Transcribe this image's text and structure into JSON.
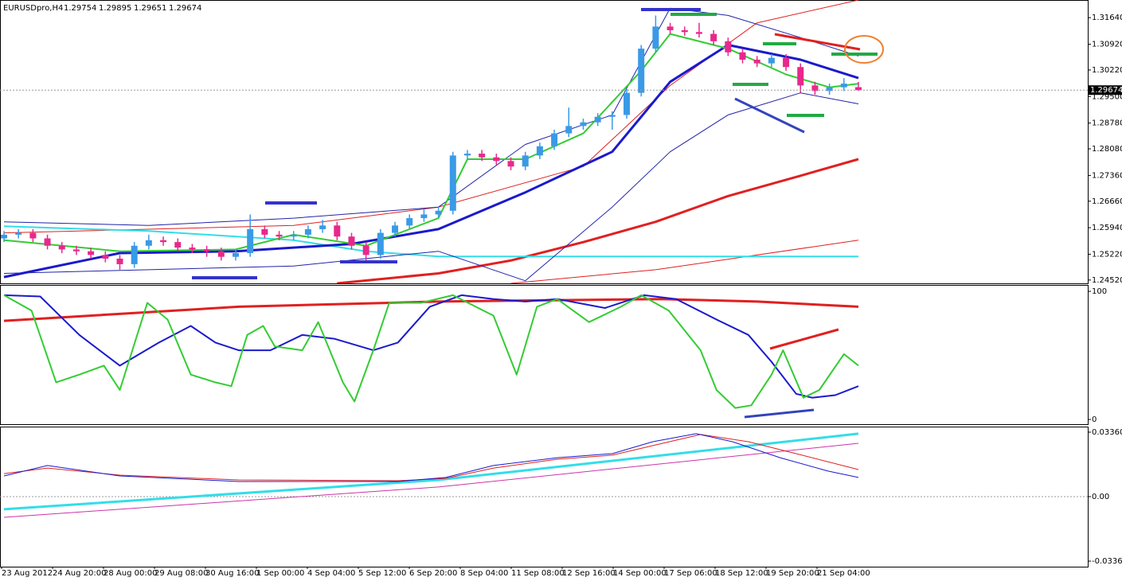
{
  "chart_data": [
    {
      "type": "candlestick",
      "title": "EURUSDpro,H4",
      "open": [
        1.2565,
        1.2575,
        1.258,
        1.2565,
        1.2545,
        1.2535,
        1.253,
        1.252,
        1.251,
        1.2495,
        1.2545,
        1.256,
        1.2555,
        1.254,
        1.2535,
        1.253,
        1.2515,
        1.2525,
        1.259,
        1.2575,
        1.257,
        1.2575,
        1.259,
        1.26,
        1.257,
        1.2545,
        1.252,
        1.258,
        1.26,
        1.262,
        1.263,
        1.264,
        1.279,
        1.2795,
        1.2785,
        1.2775,
        1.276,
        1.279,
        1.2815,
        1.285,
        1.287,
        1.288,
        1.2895,
        1.29,
        1.296,
        1.308,
        1.314,
        1.313,
        1.3125,
        1.312,
        1.31,
        1.307,
        1.305,
        1.304,
        1.3055,
        1.303,
        1.298,
        1.2965,
        1.2975,
        1.29754
      ],
      "high": [
        1.2585,
        1.259,
        1.259,
        1.2575,
        1.2555,
        1.2545,
        1.254,
        1.253,
        1.252,
        1.2555,
        1.2575,
        1.257,
        1.2565,
        1.255,
        1.2545,
        1.254,
        1.2535,
        1.263,
        1.26,
        1.2585,
        1.2585,
        1.26,
        1.2615,
        1.261,
        1.258,
        1.2555,
        1.259,
        1.261,
        1.263,
        1.2645,
        1.265,
        1.28,
        1.2805,
        1.2805,
        1.2795,
        1.2785,
        1.28,
        1.2825,
        1.286,
        1.292,
        1.289,
        1.2905,
        1.291,
        1.297,
        1.309,
        1.317,
        1.315,
        1.314,
        1.315,
        1.313,
        1.311,
        1.308,
        1.306,
        1.3065,
        1.3065,
        1.304,
        1.299,
        1.2985,
        1.3,
        1.29895
      ],
      "low": [
        1.2555,
        1.2565,
        1.2555,
        1.2535,
        1.2525,
        1.252,
        1.251,
        1.25,
        1.248,
        1.2485,
        1.2535,
        1.2545,
        1.253,
        1.2525,
        1.2515,
        1.2505,
        1.2505,
        1.2515,
        1.2565,
        1.256,
        1.256,
        1.2565,
        1.258,
        1.256,
        1.2535,
        1.2505,
        1.251,
        1.257,
        1.259,
        1.261,
        1.262,
        1.263,
        1.278,
        1.2775,
        1.2765,
        1.275,
        1.275,
        1.278,
        1.2805,
        1.284,
        1.286,
        1.287,
        1.286,
        1.289,
        1.295,
        1.307,
        1.312,
        1.3115,
        1.311,
        1.309,
        1.306,
        1.304,
        1.303,
        1.303,
        1.302,
        1.296,
        1.2955,
        1.2955,
        1.2965,
        1.29651
      ],
      "close": [
        1.2575,
        1.258,
        1.2565,
        1.2545,
        1.2535,
        1.253,
        1.252,
        1.251,
        1.2495,
        1.2545,
        1.256,
        1.2555,
        1.254,
        1.2535,
        1.253,
        1.2515,
        1.2525,
        1.259,
        1.2575,
        1.257,
        1.2575,
        1.259,
        1.26,
        1.257,
        1.2545,
        1.252,
        1.258,
        1.26,
        1.262,
        1.263,
        1.264,
        1.279,
        1.2795,
        1.2785,
        1.2775,
        1.276,
        1.279,
        1.2815,
        1.285,
        1.287,
        1.288,
        1.2895,
        1.29,
        1.296,
        1.308,
        1.314,
        1.313,
        1.3125,
        1.312,
        1.31,
        1.307,
        1.305,
        1.304,
        1.3055,
        1.303,
        1.298,
        1.2965,
        1.2975,
        1.2985,
        1.29674
      ],
      "up_color": "#3a9ae6",
      "down_color": "#e8288c",
      "ylim": [
        1.2443,
        1.3212
      ],
      "yticks": [
        {
          "value": 1.3164,
          "label": "1.31640"
        },
        {
          "value": 1.3092,
          "label": "1.30920"
        },
        {
          "value": 1.3022,
          "label": "1.30220"
        },
        {
          "value": 1.295,
          "label": "1.29500"
        },
        {
          "value": 1.2878,
          "label": "1.28780"
        },
        {
          "value": 1.2808,
          "label": "1.28080"
        },
        {
          "value": 1.2736,
          "label": "1.27360"
        },
        {
          "value": 1.2666,
          "label": "1.26660"
        },
        {
          "value": 1.2594,
          "label": "1.25940"
        },
        {
          "value": 1.2522,
          "label": "1.25220"
        },
        {
          "value": 1.2452,
          "label": "1.24520"
        }
      ],
      "series": [
        {
          "color": "#e02020",
          "width": 3,
          "x": [
            23,
            30,
            35,
            40,
            45,
            50,
            55,
            59
          ],
          "values": [
            1.2443,
            1.247,
            1.2505,
            1.2555,
            1.261,
            1.268,
            1.2735,
            1.278
          ]
        },
        {
          "color": "#e02020",
          "width": 1,
          "x": [
            0,
            20,
            30,
            40,
            46,
            52,
            59
          ],
          "values": [
            1.258,
            1.26,
            1.265,
            1.276,
            1.298,
            1.315,
            1.3212
          ]
        },
        {
          "color": "#e02020",
          "width": 1,
          "x": [
            35,
            45,
            59
          ],
          "values": [
            1.2443,
            1.248,
            1.256
          ]
        },
        {
          "color": "#33dde8",
          "width": 2,
          "x": [
            0,
            10,
            20,
            25,
            30,
            59
          ],
          "values": [
            1.2598,
            1.2585,
            1.256,
            1.253,
            1.2516,
            1.2516
          ]
        },
        {
          "color": "#2222aa",
          "width": 1,
          "x": [
            0,
            10,
            20,
            30,
            36,
            42,
            46,
            50,
            55,
            59
          ],
          "values": [
            1.261,
            1.26,
            1.262,
            1.265,
            1.282,
            1.29,
            1.319,
            1.317,
            1.311,
            1.306
          ]
        },
        {
          "color": "#2222aa",
          "width": 1,
          "x": [
            0,
            10,
            20,
            30,
            36,
            42,
            46,
            50,
            55,
            59
          ],
          "values": [
            1.247,
            1.248,
            1.249,
            1.253,
            1.245,
            1.265,
            1.28,
            1.29,
            1.296,
            1.293
          ]
        },
        {
          "color": "#1a1acc",
          "width": 3,
          "x": [
            0,
            8,
            16,
            24,
            30,
            36,
            42,
            46,
            50,
            55,
            59
          ],
          "values": [
            1.246,
            1.2525,
            1.253,
            1.255,
            1.259,
            1.269,
            1.28,
            1.299,
            1.309,
            1.305,
            1.3
          ]
        },
        {
          "color": "#33cc33",
          "width": 2,
          "x": [
            0,
            8,
            16,
            20,
            25,
            30,
            32,
            36,
            40,
            44,
            46,
            50,
            54,
            57,
            59
          ],
          "values": [
            1.256,
            1.253,
            1.2535,
            1.2575,
            1.2545,
            1.262,
            1.278,
            1.278,
            1.285,
            1.302,
            1.312,
            1.308,
            1.301,
            1.2975,
            1.2985
          ]
        }
      ]
    },
    {
      "type": "line",
      "ylim": [
        -3.7,
        105
      ],
      "yticks": [
        100,
        0
      ],
      "series": [
        {
          "color": "#e02020",
          "width": 3,
          "x": [
            0,
            16.2,
            30,
            45.3,
            52,
            59
          ],
          "values": [
            77,
            88,
            92,
            94,
            92,
            88
          ]
        },
        {
          "color": "#1a1acc",
          "width": 2,
          "x": [
            0,
            2.5,
            5.2,
            8,
            10.7,
            12.9,
            14.6,
            16.2,
            18.4,
            20.6,
            22.8,
            25.5,
            27.2,
            29.4,
            31.6,
            33.8,
            36,
            38.2,
            41.5,
            44.2,
            46.4,
            49.2,
            51.4,
            53,
            54.7,
            55.8,
            57.4,
            59
          ],
          "values": [
            97,
            96,
            66,
            42,
            60,
            73,
            60,
            54,
            54,
            66,
            63,
            54,
            60,
            88,
            97,
            94,
            92,
            94,
            87,
            97,
            94,
            78,
            66,
            45,
            20,
            17,
            19,
            26
          ]
        },
        {
          "color": "#33cc33",
          "width": 2,
          "x": [
            0,
            1.9,
            3.6,
            5.2,
            6.9,
            8,
            9.9,
            11.3,
            12.9,
            14.6,
            15.7,
            16.8,
            17.9,
            18.7,
            20.6,
            21.7,
            23.4,
            24.2,
            25.5,
            26.6,
            28.8,
            31,
            33.8,
            35.4,
            36.8,
            38.2,
            40.4,
            42.6,
            44,
            45.9,
            48.1,
            49.2,
            50.5,
            51.6,
            53,
            53.8,
            55.2,
            56.3,
            58,
            59
          ],
          "values": [
            97,
            85,
            29,
            35,
            42,
            23,
            91,
            78,
            35,
            29,
            26,
            66,
            73,
            57,
            54,
            76,
            29,
            14,
            54,
            91,
            91,
            97,
            81,
            35,
            88,
            94,
            76,
            88,
            97,
            85,
            54,
            23,
            9,
            11,
            35,
            54,
            17,
            23,
            51,
            42
          ]
        }
      ]
    },
    {
      "type": "line",
      "ylim": [
        -0.0365,
        0.0365
      ],
      "yticks": [
        0.033608,
        {
          "value": 0,
          "label": "0.00"
        },
        -0.033608
      ],
      "xlabels": [
        "23 Aug 2012",
        "24 Aug 20:00",
        "28 Aug 00:00",
        "29 Aug 08:00",
        "30 Aug 16:00",
        "1 Sep 00:00",
        "4 Sep 04:00",
        "5 Sep 12:00",
        "6 Sep 20:00",
        "8 Sep 04:00",
        "11 Sep 08:00",
        "12 Sep 16:00",
        "14 Sep 00:00",
        "17 Sep 06:00",
        "18 Sep 12:00",
        "19 Sep 20:00",
        "21 Sep 04:00"
      ],
      "series": [
        {
          "color": "#33dde8",
          "width": 3,
          "x": [
            0,
            30,
            59
          ],
          "values": [
            -0.0066,
            0.0087,
            0.0328
          ]
        },
        {
          "color": "#cc33aa",
          "width": 1,
          "x": [
            0,
            30,
            59
          ],
          "values": [
            -0.0108,
            0.005,
            0.0278
          ]
        },
        {
          "color": "#e02020",
          "width": 1,
          "x": [
            0,
            3,
            8,
            16.2,
            27.2,
            30.5,
            33.8,
            38.2,
            42,
            44.8,
            48.1,
            51.4,
            54.7,
            59
          ],
          "values": [
            0.012,
            0.0149,
            0.0112,
            0.0087,
            0.0083,
            0.0095,
            0.0149,
            0.0195,
            0.0216,
            0.0266,
            0.0324,
            0.0286,
            0.0224,
            0.0141
          ]
        },
        {
          "color": "#1a1acc",
          "width": 1,
          "x": [
            0,
            3,
            8,
            16.2,
            27.2,
            30.5,
            33.8,
            38.2,
            42,
            44.8,
            47.8,
            50.3,
            53.6,
            56.9,
            59
          ],
          "values": [
            0.0108,
            0.0162,
            0.0108,
            0.0079,
            0.0079,
            0.01,
            0.0162,
            0.0203,
            0.0224,
            0.0286,
            0.0328,
            0.0286,
            0.0203,
            0.0133,
            0.01
          ]
        }
      ]
    }
  ]
}
